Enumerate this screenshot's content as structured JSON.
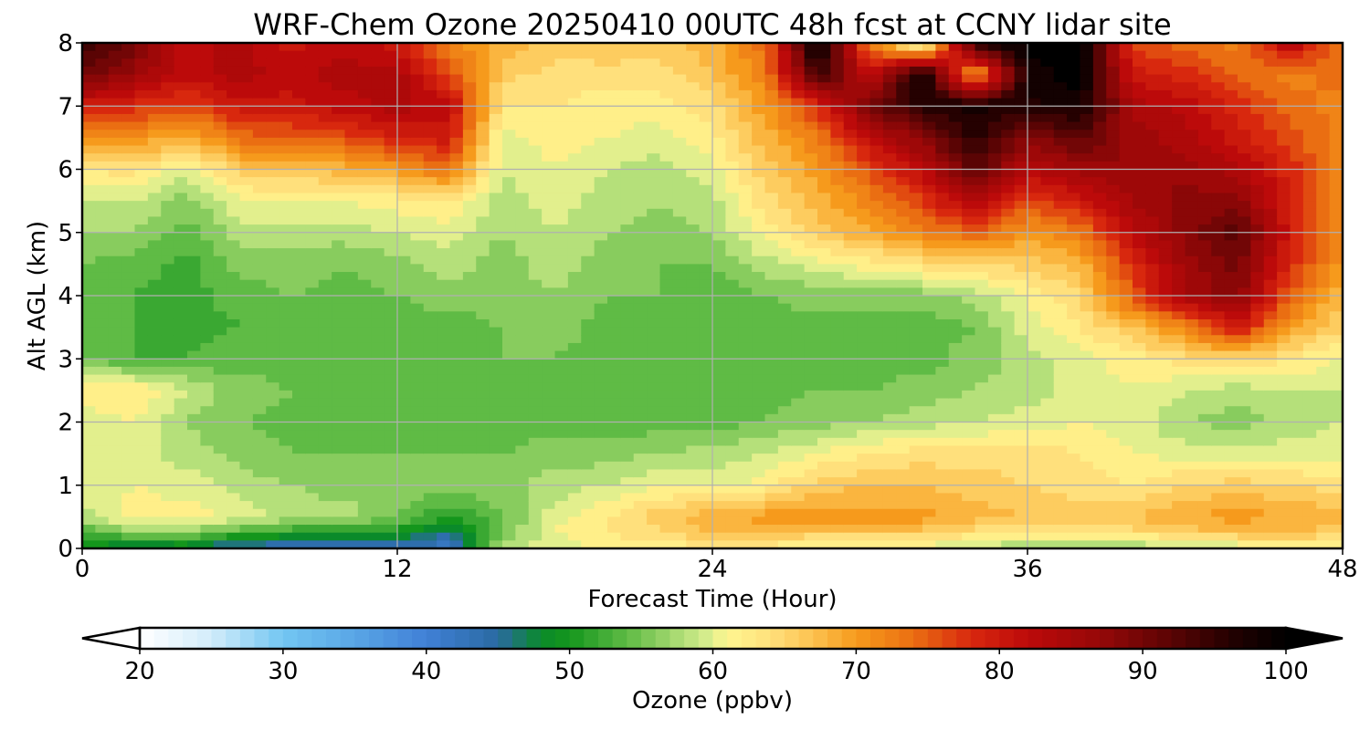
{
  "chart_data": {
    "type": "heatmap",
    "title": "WRF-Chem Ozone  20250410 00UTC 48h fcst at CCNY lidar site",
    "xlabel": "Forecast Time (Hour)",
    "ylabel": "Alt AGL (km)",
    "xlim": [
      0,
      48
    ],
    "ylim": [
      0,
      8
    ],
    "xticks": [
      0,
      12,
      24,
      36,
      48
    ],
    "yticks": [
      0,
      1,
      2,
      3,
      4,
      5,
      6,
      7,
      8
    ],
    "grid": true,
    "z_name": "Ozone",
    "x": [
      0,
      2,
      4,
      6,
      8,
      10,
      12,
      14,
      16,
      18,
      20,
      22,
      24,
      26,
      28,
      30,
      32,
      34,
      36,
      38,
      40,
      42,
      44,
      46,
      48
    ],
    "y": [
      0.0,
      0.25,
      0.5,
      1.0,
      1.5,
      2.0,
      2.5,
      3.0,
      3.5,
      4.0,
      4.5,
      5.0,
      5.5,
      6.0,
      6.5,
      7.0,
      7.5,
      8.0
    ],
    "values": [
      [
        49,
        46,
        47,
        43,
        42,
        41,
        43,
        41,
        58,
        60,
        61,
        62,
        62,
        62,
        61,
        61,
        60,
        58,
        57,
        56,
        57,
        58,
        59,
        60,
        61
      ],
      [
        52,
        56,
        56,
        53,
        51,
        50,
        50,
        45,
        55,
        61,
        63,
        65,
        67,
        67,
        66,
        66,
        66,
        64,
        63,
        63,
        64,
        66,
        67,
        67,
        66
      ],
      [
        58,
        62,
        62,
        60,
        58,
        58,
        55,
        51,
        55,
        60,
        63,
        66,
        69,
        70,
        70,
        70,
        70,
        68,
        67,
        66,
        67,
        69,
        70,
        69,
        68
      ],
      [
        60,
        61,
        60,
        58,
        57,
        56,
        56,
        56,
        56,
        58,
        59,
        61,
        60,
        62,
        66,
        67,
        67,
        66,
        65,
        64,
        63,
        65,
        66,
        65,
        64
      ],
      [
        60,
        60,
        58,
        56,
        55,
        55,
        55,
        55,
        55,
        56,
        56,
        57,
        58,
        59,
        61,
        63,
        64,
        64,
        64,
        63,
        61,
        60,
        60,
        60,
        60
      ],
      [
        60,
        61,
        57,
        55,
        54,
        54,
        54,
        54,
        54,
        54,
        54,
        54,
        54,
        55,
        56,
        57,
        58,
        59,
        60,
        61,
        60,
        57,
        56,
        58,
        59
      ],
      [
        62,
        63,
        59,
        56,
        55,
        55,
        55,
        54,
        54,
        54,
        54,
        54,
        54,
        54,
        55,
        55,
        56,
        57,
        58,
        60,
        61,
        59,
        58,
        59,
        59
      ],
      [
        55,
        53,
        53,
        54,
        54,
        53,
        54,
        54,
        55,
        55,
        54,
        54,
        54,
        54,
        54,
        54,
        54,
        56,
        58,
        60,
        62,
        64,
        65,
        63,
        61
      ],
      [
        53,
        53,
        52,
        53,
        54,
        53,
        54,
        54,
        55,
        56,
        54,
        54,
        53,
        54,
        54,
        54,
        54,
        55,
        60,
        63,
        67,
        72,
        80,
        70,
        65
      ],
      [
        54,
        53,
        52,
        54,
        55,
        54,
        55,
        56,
        56,
        57,
        55,
        55,
        53,
        55,
        56,
        56,
        56,
        58,
        61,
        65,
        75,
        85,
        88,
        75,
        67
      ],
      [
        55,
        54,
        52,
        56,
        56,
        55,
        56,
        58,
        56,
        58,
        56,
        55,
        55,
        58,
        60,
        62,
        64,
        65,
        66,
        68,
        78,
        86,
        90,
        78,
        70
      ],
      [
        57,
        57,
        54,
        58,
        58,
        58,
        59,
        60,
        57,
        59,
        57,
        56,
        57,
        62,
        66,
        69,
        72,
        75,
        70,
        73,
        82,
        88,
        92,
        80,
        72
      ],
      [
        59,
        59,
        56,
        61,
        61,
        61,
        62,
        63,
        58,
        60,
        58,
        57,
        58,
        64,
        68,
        72,
        77,
        85,
        76,
        80,
        85,
        88,
        88,
        79,
        72
      ],
      [
        63,
        64,
        60,
        66,
        67,
        68,
        70,
        74,
        59,
        61,
        59,
        58,
        60,
        66,
        70,
        76,
        82,
        92,
        83,
        86,
        87,
        86,
        84,
        78,
        72
      ],
      [
        70,
        71,
        68,
        74,
        75,
        76,
        79,
        80,
        60,
        62,
        61,
        60,
        62,
        68,
        73,
        82,
        88,
        96,
        88,
        92,
        86,
        84,
        80,
        76,
        72
      ],
      [
        80,
        78,
        76,
        80,
        80,
        82,
        84,
        82,
        63,
        63,
        62,
        62,
        64,
        70,
        78,
        90,
        96,
        98,
        96,
        98,
        84,
        82,
        78,
        74,
        72
      ],
      [
        90,
        86,
        82,
        84,
        82,
        84,
        84,
        76,
        66,
        64,
        64,
        64,
        67,
        72,
        95,
        82,
        99,
        68,
        98,
        100,
        80,
        78,
        74,
        72,
        74
      ],
      [
        94,
        90,
        82,
        84,
        80,
        82,
        80,
        72,
        68,
        66,
        67,
        66,
        68,
        74,
        100,
        72,
        58,
        96,
        100,
        100,
        76,
        74,
        72,
        84,
        72
      ]
    ],
    "colorbar": {
      "label": "Ozone  (ppbv)",
      "min": 20,
      "max": 100,
      "ticks": [
        20,
        30,
        40,
        50,
        60,
        70,
        80,
        90,
        100
      ],
      "extend": "both",
      "orientation": "horizontal",
      "colors": [
        {
          "v": 20,
          "c": "#ffffff"
        },
        {
          "v": 25,
          "c": "#d2ecfa"
        },
        {
          "v": 30,
          "c": "#72c6f2"
        },
        {
          "v": 35,
          "c": "#5aa6e6"
        },
        {
          "v": 40,
          "c": "#4080d6"
        },
        {
          "v": 45,
          "c": "#2a6aa2"
        },
        {
          "v": 48,
          "c": "#0a8a2a"
        },
        {
          "v": 50,
          "c": "#14961c"
        },
        {
          "v": 52,
          "c": "#3aa832"
        },
        {
          "v": 54,
          "c": "#5fbb45"
        },
        {
          "v": 56,
          "c": "#88cc5e"
        },
        {
          "v": 58,
          "c": "#b5e07a"
        },
        {
          "v": 59.5,
          "c": "#d4ec8c"
        },
        {
          "v": 61,
          "c": "#fff690"
        },
        {
          "v": 64,
          "c": "#ffe07c"
        },
        {
          "v": 67,
          "c": "#fcc250"
        },
        {
          "v": 70,
          "c": "#f69a1c"
        },
        {
          "v": 74,
          "c": "#ea6e12"
        },
        {
          "v": 78,
          "c": "#d8280e"
        },
        {
          "v": 82,
          "c": "#bc0a0a"
        },
        {
          "v": 87,
          "c": "#960808"
        },
        {
          "v": 92,
          "c": "#5a0404"
        },
        {
          "v": 96,
          "c": "#250101"
        },
        {
          "v": 100,
          "c": "#000000"
        }
      ]
    }
  }
}
